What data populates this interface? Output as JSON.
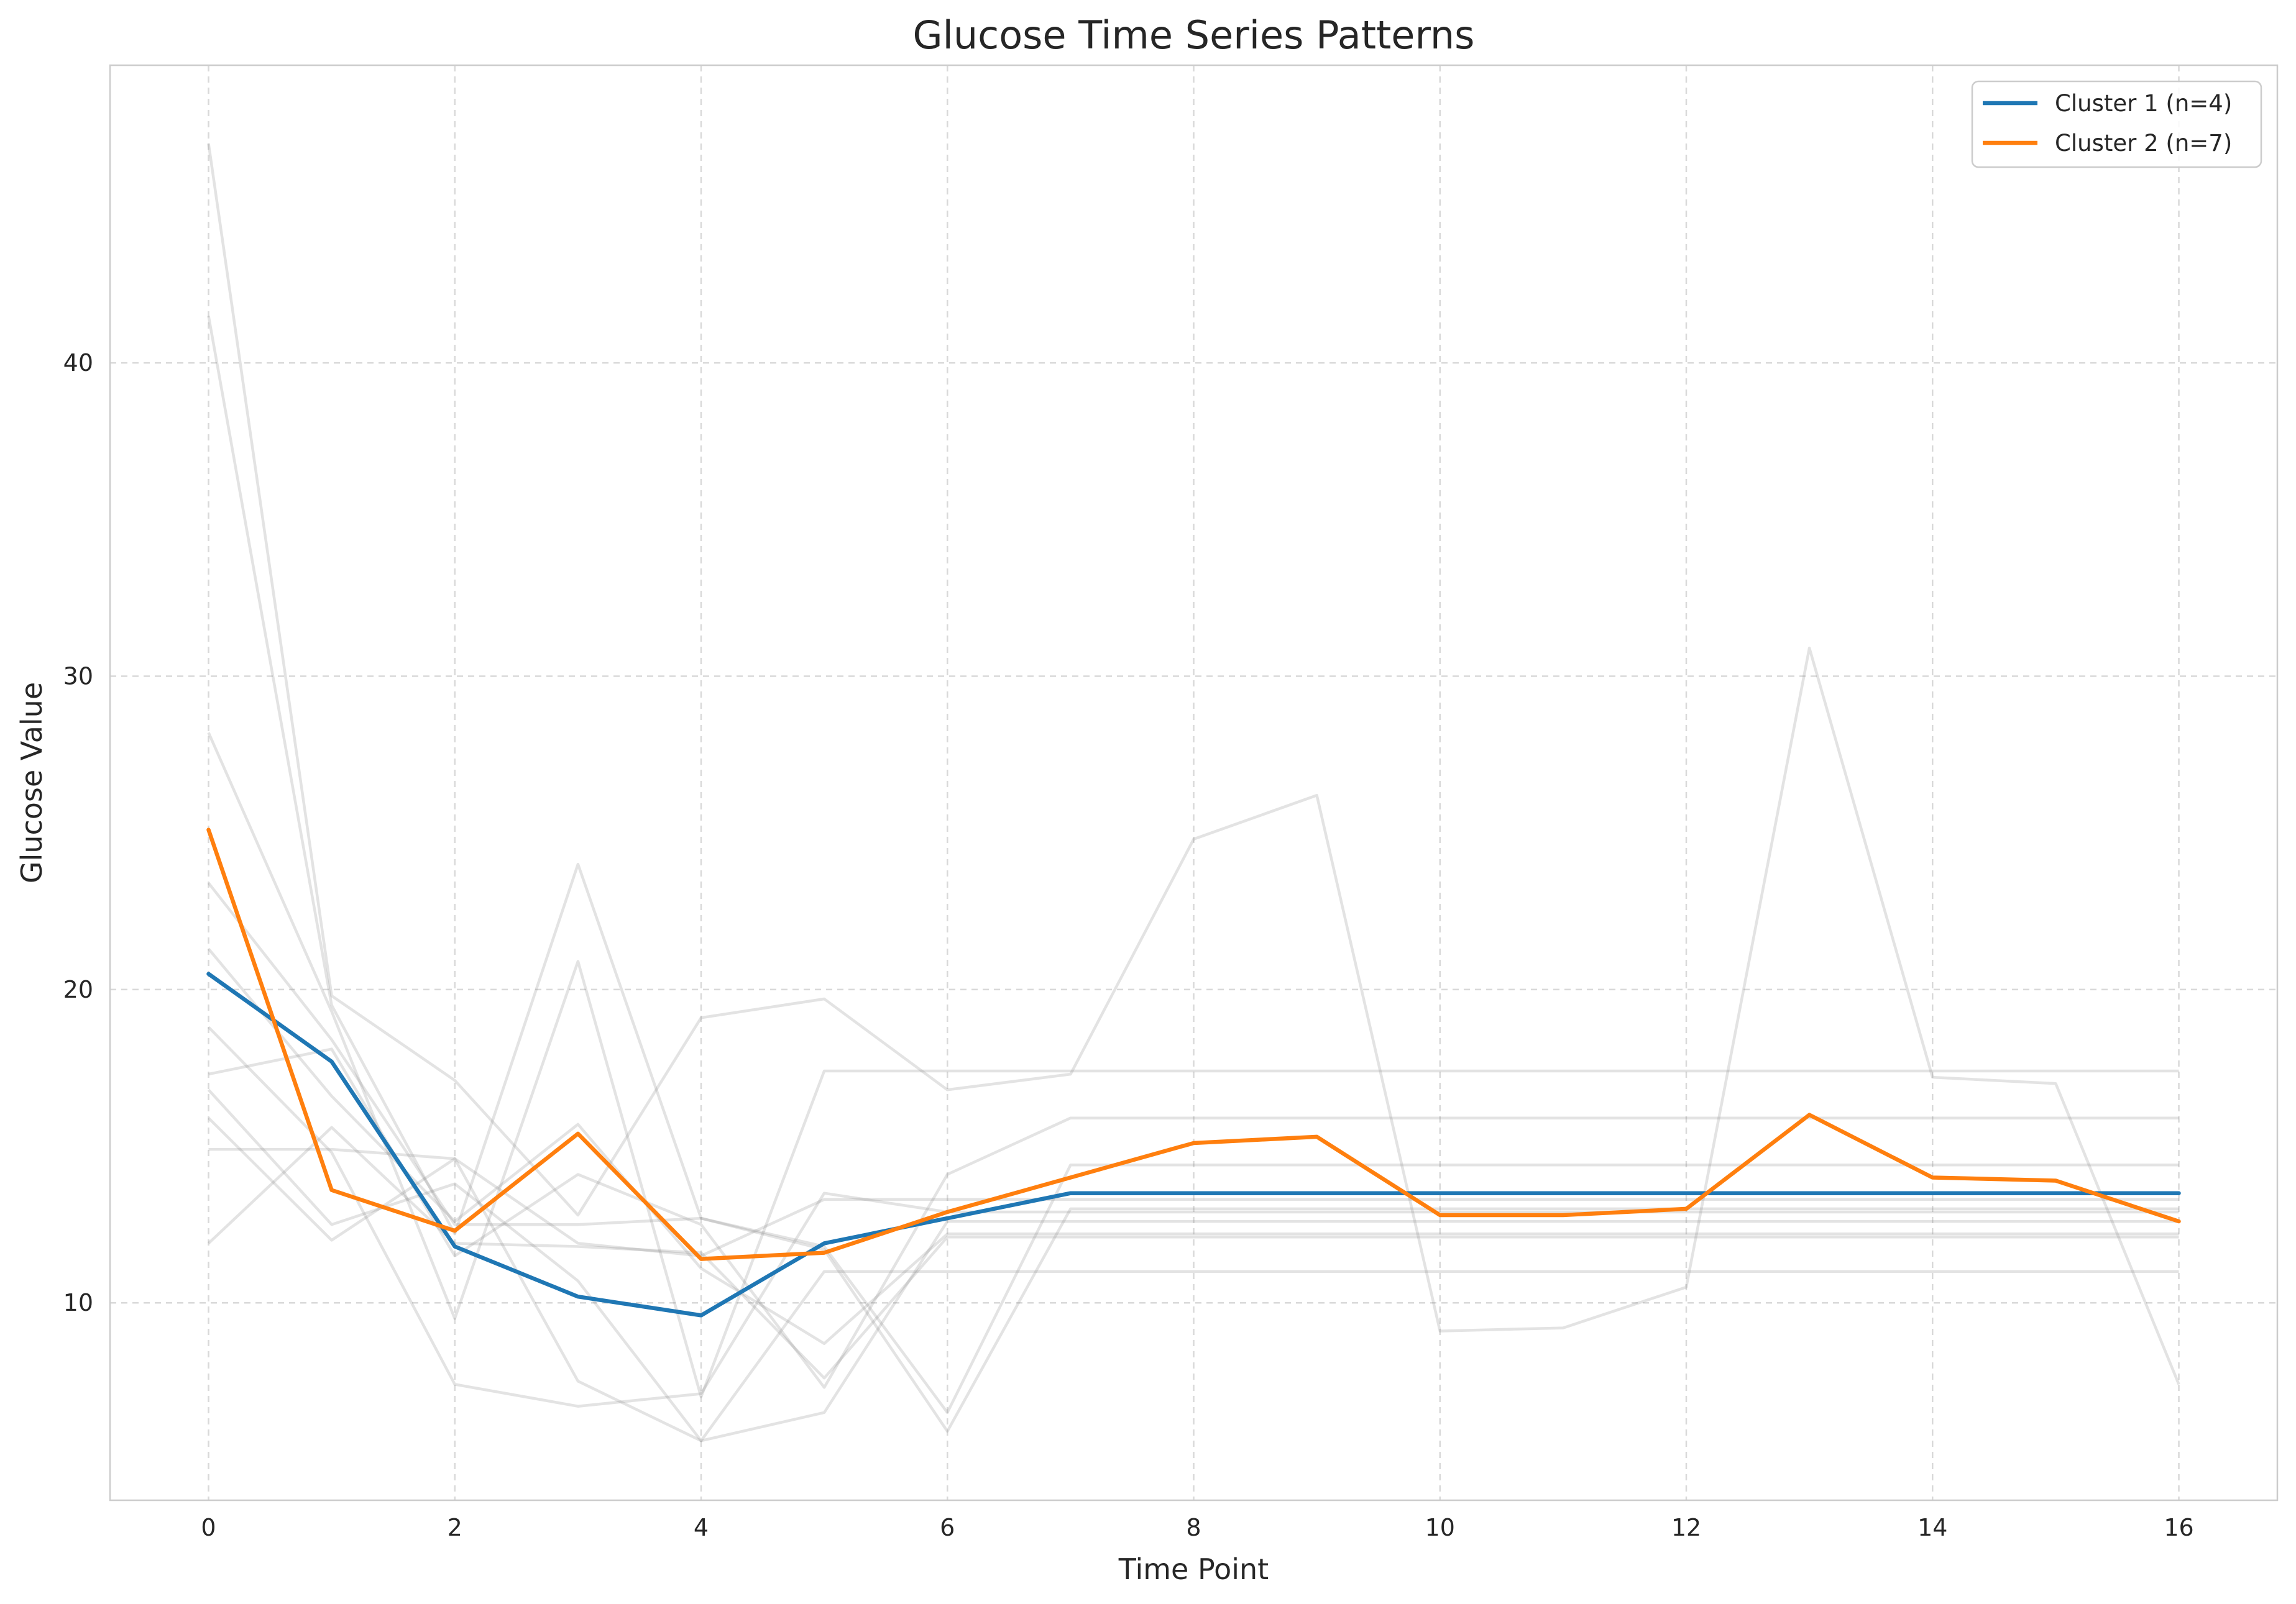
{
  "chart_data": {
    "type": "line",
    "title": "Glucose Time Series Patterns",
    "xlabel": "Time Point",
    "ylabel": "Glucose Value",
    "xlim": [
      -0.8,
      16.8
    ],
    "ylim": [
      3.7,
      49.5
    ],
    "xticks": [
      0,
      2,
      4,
      6,
      8,
      10,
      12,
      14,
      16
    ],
    "xtick_labels": [
      "0",
      "2",
      "4",
      "6",
      "8",
      "10",
      "12",
      "14",
      "16"
    ],
    "yticks": [
      10,
      20,
      30,
      40
    ],
    "ytick_labels": [
      "10",
      "20",
      "30",
      "40"
    ],
    "grid": true,
    "legend_position": "top-right",
    "x": [
      0,
      1,
      2,
      3,
      4,
      5,
      6,
      7,
      8,
      9,
      10,
      11,
      12,
      13,
      14,
      15,
      16
    ],
    "series": [
      {
        "name": "Cluster 1 (n=4)",
        "color": "#1f77b4",
        "values": [
          20.5,
          17.7,
          11.8,
          10.2,
          9.6,
          11.9,
          12.7,
          13.5,
          13.5,
          13.5,
          13.5,
          13.5,
          13.5,
          13.5,
          13.5,
          13.5,
          13.5
        ]
      },
      {
        "name": "Cluster 2 (n=7)",
        "color": "#ff7f0e",
        "values": [
          25.1,
          13.6,
          12.3,
          15.4,
          11.4,
          11.6,
          12.9,
          14.0,
          15.1,
          15.3,
          12.8,
          12.8,
          13.0,
          16.0,
          14.0,
          13.9,
          12.6
        ]
      }
    ],
    "background_series": [
      {
        "values": [
          47.0,
          19.8,
          17.1,
          12.8,
          19.1,
          19.7,
          16.8,
          17.3,
          24.8,
          26.2,
          9.1,
          9.2,
          10.5,
          30.9,
          17.2,
          17.0,
          7.4
        ]
      },
      {
        "values": [
          41.5,
          19.5,
          12.2,
          24.0,
          12.7,
          11.7,
          5.9,
          13.0,
          13.0,
          13.0,
          13.0,
          13.0,
          13.0,
          13.0,
          13.0,
          13.0,
          13.0
        ]
      },
      {
        "values": [
          28.2,
          19.3,
          9.5,
          20.9,
          7.0,
          17.4,
          17.4,
          17.4,
          17.4,
          17.4,
          17.4,
          17.4,
          17.4,
          17.4,
          17.4,
          17.4,
          17.4
        ]
      },
      {
        "values": [
          23.4,
          18.4,
          12.5,
          12.5,
          12.7,
          11.8,
          6.5,
          14.4,
          14.4,
          14.4,
          14.4,
          14.4,
          14.4,
          14.4,
          14.4,
          14.4,
          14.4
        ]
      },
      {
        "values": [
          21.3,
          16.6,
          12.6,
          15.7,
          11.1,
          8.7,
          12.2,
          12.2,
          12.2,
          12.2,
          12.2,
          12.2,
          12.2,
          12.2,
          12.2,
          12.2,
          12.2
        ]
      },
      {
        "values": [
          18.8,
          14.8,
          7.4,
          6.7,
          7.1,
          13.5,
          12.9,
          12.9,
          12.9,
          12.9,
          12.9,
          12.9,
          12.9,
          12.9,
          12.9,
          12.9,
          12.9
        ]
      },
      {
        "values": [
          17.3,
          18.1,
          11.5,
          14.1,
          12.5,
          7.3,
          14.1,
          15.9,
          15.9,
          15.9,
          15.9,
          15.9,
          15.9,
          15.9,
          15.9,
          15.9,
          15.9
        ]
      },
      {
        "values": [
          16.8,
          12.5,
          13.8,
          10.7,
          5.6,
          11.0,
          11.0,
          11.0,
          11.0,
          11.0,
          11.0,
          11.0,
          11.0,
          11.0,
          11.0,
          11.0,
          11.0
        ]
      },
      {
        "values": [
          15.9,
          12.0,
          14.6,
          11.9,
          11.5,
          13.3,
          13.3,
          13.3,
          13.3,
          13.3,
          13.3,
          13.3,
          13.3,
          13.3,
          13.3,
          13.3,
          13.3
        ]
      },
      {
        "values": [
          14.9,
          14.9,
          14.6,
          7.5,
          5.6,
          6.5,
          12.6,
          12.6,
          12.6,
          12.6,
          12.6,
          12.6,
          12.6,
          12.6,
          12.6,
          12.6,
          12.6
        ]
      },
      {
        "values": [
          11.9,
          15.6,
          11.9,
          11.8,
          11.6,
          7.6,
          12.1,
          12.1,
          12.1,
          12.1,
          12.1,
          12.1,
          12.1,
          12.1,
          12.1,
          12.1,
          12.1
        ]
      }
    ]
  }
}
